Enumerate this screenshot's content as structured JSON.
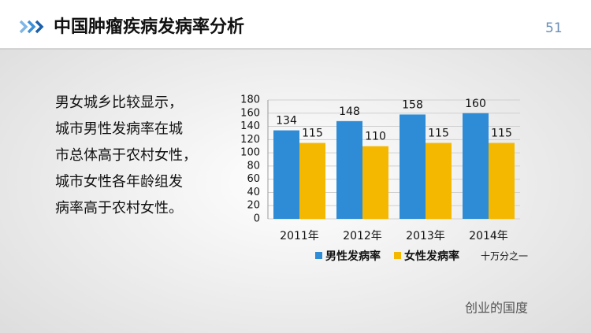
{
  "header": {
    "title": "中国肿瘤疾病发病率分析",
    "page_number": "51"
  },
  "text": {
    "lines": [
      "男女城乡比较显示，",
      "城市男性发病率在城",
      "市总体高于农村女性，",
      "城市女性各年龄组发",
      "病率高于农村女性。"
    ]
  },
  "watermark": "创业的国度",
  "chart_data": {
    "type": "bar",
    "categories": [
      "2011年",
      "2012年",
      "2013年",
      "2014年"
    ],
    "series": [
      {
        "name": "男性发病率",
        "color": "#2e8bd6",
        "values": [
          134,
          148,
          158,
          160
        ]
      },
      {
        "name": "女性发病率",
        "color": "#f5b800",
        "values": [
          115,
          110,
          115,
          115
        ]
      }
    ],
    "unit_label": "十万分之一",
    "ylim": [
      0,
      180
    ],
    "yticks": [
      0,
      20,
      40,
      60,
      80,
      100,
      120,
      140,
      160,
      180
    ],
    "grid": true,
    "data_labels": true
  }
}
